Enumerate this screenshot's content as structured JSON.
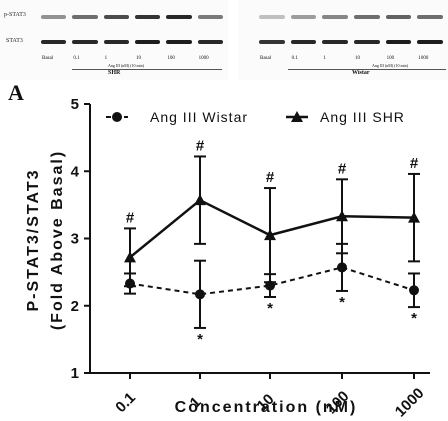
{
  "blot": {
    "left": {
      "row1_label": "p-STAT3",
      "row2_label": "STAT3",
      "lanes": [
        "Basal",
        "0.1",
        "1",
        "10",
        "100",
        "1000"
      ],
      "treatment": "Ang III (nM) (10 min)",
      "group": "SHR",
      "row1_intensity": [
        0.45,
        0.6,
        0.75,
        0.85,
        0.9,
        0.55
      ],
      "row2_intensity": [
        0.9,
        0.9,
        0.9,
        0.95,
        0.95,
        0.9
      ]
    },
    "right": {
      "lanes": [
        "Basal",
        "0.1",
        "1",
        "10",
        "100",
        "1000"
      ],
      "treatment": "Ang III (nM) (10 min)",
      "group": "Wistar",
      "row1_intensity": [
        0.25,
        0.4,
        0.5,
        0.6,
        0.65,
        0.6
      ],
      "row2_intensity": [
        0.85,
        0.9,
        0.9,
        0.9,
        0.95,
        0.95
      ]
    }
  },
  "panel_letter": "A",
  "chart_data": {
    "type": "line",
    "categories": [
      "0.1",
      "1",
      "10",
      "100",
      "1000"
    ],
    "xlabel": "Concentration (nM)",
    "ylabel_lines": [
      "P-STAT3/STAT3",
      "(Fold Above Basal)"
    ],
    "ylim": [
      1,
      5
    ],
    "yticks": [
      "1",
      "2",
      "3",
      "4",
      "5"
    ],
    "grid": false,
    "legend_position": "top",
    "series": [
      {
        "name": "Ang III Wistar",
        "marker": "circle",
        "line_style": "dashed",
        "values": [
          2.33,
          2.17,
          2.3,
          2.57,
          2.23
        ],
        "errors": [
          0.15,
          0.5,
          0.17,
          0.35,
          0.25
        ],
        "annotations": [
          "",
          "*",
          "*",
          "*",
          "*"
        ]
      },
      {
        "name": "Ang III SHR",
        "marker": "triangle",
        "line_style": "solid",
        "values": [
          2.72,
          3.57,
          3.05,
          3.33,
          3.31
        ],
        "errors": [
          0.43,
          0.65,
          0.7,
          0.55,
          0.65
        ],
        "annotations": [
          "#",
          "#",
          "#",
          "#",
          "#"
        ]
      }
    ]
  }
}
